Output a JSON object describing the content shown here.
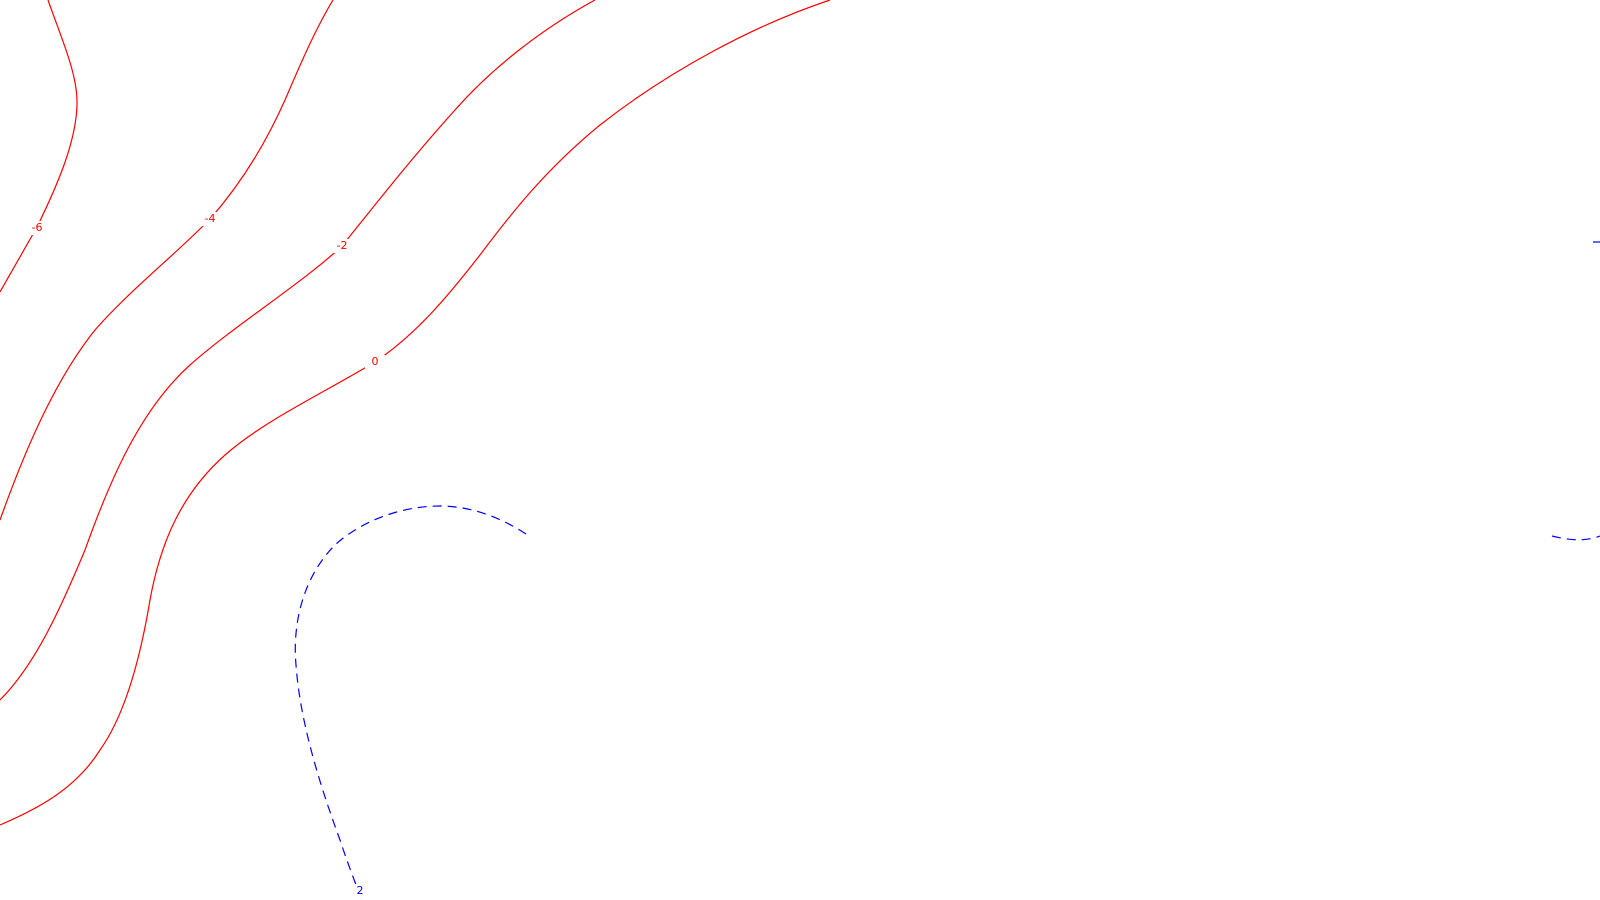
{
  "map": {
    "colors": {
      "background": "#ffffff",
      "positive": "#ff0000",
      "negative": "#0000ff"
    },
    "contours": [
      {
        "level": "-6",
        "label": "-6",
        "sign": "positive"
      },
      {
        "level": "-4",
        "label": "-4",
        "sign": "positive"
      },
      {
        "level": "-2",
        "label": "-2",
        "sign": "positive"
      },
      {
        "level": "0",
        "label": "0",
        "sign": "positive"
      },
      {
        "level": "2",
        "label": "2",
        "sign": "negative"
      },
      {
        "level": "2",
        "label": "",
        "sign": "negative"
      },
      {
        "level": "2",
        "label": "",
        "sign": "negative"
      }
    ]
  }
}
